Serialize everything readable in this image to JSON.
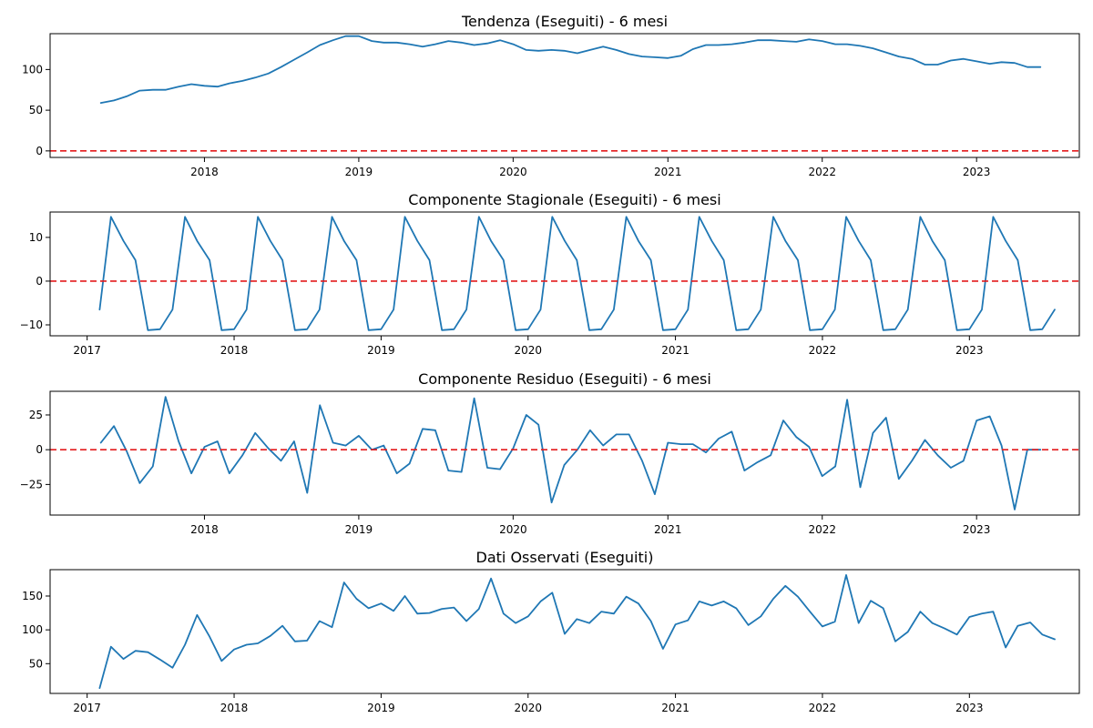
{
  "colors": {
    "series": "#1f77b4",
    "reference_line": "#e31a1c",
    "background": "#ffffff"
  },
  "chart_data": [
    {
      "type": "line",
      "title": "Tendenza (Eseguiti) - 6 mesi",
      "x_type": "date",
      "xlim": [
        "2017-01-01",
        "2023-09-01"
      ],
      "xticks": [
        "2018-01-01",
        "2019-01-01",
        "2020-01-01",
        "2021-01-01",
        "2022-01-01",
        "2023-01-01"
      ],
      "xtick_labels": [
        "2018",
        "2019",
        "2020",
        "2021",
        "2022",
        "2023"
      ],
      "ylim": [
        -8,
        144
      ],
      "yticks": [
        0,
        50,
        100
      ],
      "reference_line": 0,
      "grid": false,
      "x": [
        "2017-05-01",
        "2017-06-01",
        "2017-07-01",
        "2017-08-01",
        "2017-09-01",
        "2017-10-01",
        "2017-11-01",
        "2017-12-01",
        "2018-01-01",
        "2018-02-01",
        "2018-03-01",
        "2018-04-01",
        "2018-05-01",
        "2018-06-01",
        "2018-07-01",
        "2018-08-01",
        "2018-09-01",
        "2018-10-01",
        "2018-11-01",
        "2018-12-01",
        "2019-01-01",
        "2019-02-01",
        "2019-03-01",
        "2019-04-01",
        "2019-05-01",
        "2019-06-01",
        "2019-07-01",
        "2019-08-01",
        "2019-09-01",
        "2019-10-01",
        "2019-11-01",
        "2019-12-01",
        "2020-01-01",
        "2020-02-01",
        "2020-03-01",
        "2020-04-01",
        "2020-05-01",
        "2020-06-01",
        "2020-07-01",
        "2020-08-01",
        "2020-09-01",
        "2020-10-01",
        "2020-11-01",
        "2020-12-01",
        "2021-01-01",
        "2021-02-01",
        "2021-03-01",
        "2021-04-01",
        "2021-05-01",
        "2021-06-01",
        "2021-07-01",
        "2021-08-01",
        "2021-09-01",
        "2021-10-01",
        "2021-11-01",
        "2021-12-01",
        "2022-01-01",
        "2022-02-01",
        "2022-03-01",
        "2022-04-01",
        "2022-05-01",
        "2022-06-01",
        "2022-07-01",
        "2022-08-01",
        "2022-09-01",
        "2022-10-01",
        "2022-11-01",
        "2022-12-01",
        "2023-01-01",
        "2023-02-01",
        "2023-03-01",
        "2023-04-01",
        "2023-05-01",
        "2023-06-01"
      ],
      "series": [
        {
          "values": [
            59,
            62,
            67,
            74,
            75,
            75,
            79,
            82,
            80,
            79,
            83,
            86,
            90,
            95,
            103,
            112,
            121,
            130,
            136,
            141,
            141,
            135,
            133,
            133,
            131,
            128,
            131,
            135,
            133,
            130,
            132,
            136,
            131,
            124,
            123,
            124,
            123,
            120,
            124,
            128,
            124,
            119,
            116,
            115,
            114,
            117,
            125,
            130,
            130,
            131,
            133,
            136,
            136,
            135,
            134,
            137,
            135,
            131,
            131,
            129,
            126,
            121,
            116,
            113,
            106,
            106,
            111,
            113,
            110,
            107,
            109,
            108,
            103,
            103
          ]
        }
      ]
    },
    {
      "type": "line",
      "title": "Componente Stagionale (Eseguiti) - 6 mesi",
      "x_type": "date",
      "xlim": [
        "2016-10-01",
        "2023-10-01"
      ],
      "xticks": [
        "2017-01-01",
        "2018-01-01",
        "2019-01-01",
        "2020-01-01",
        "2021-01-01",
        "2022-01-01",
        "2023-01-01"
      ],
      "xtick_labels": [
        "2017",
        "2018",
        "2019",
        "2020",
        "2021",
        "2022",
        "2023"
      ],
      "ylim": [
        -12.5,
        15.8
      ],
      "yticks": [
        -10,
        0,
        10
      ],
      "reference_line": 0,
      "grid": false,
      "x": [
        "2017-02-01",
        "2017-03-01",
        "2017-04-01",
        "2017-05-01",
        "2017-06-01",
        "2017-07-01",
        "2017-08-01",
        "2017-09-01",
        "2017-10-01",
        "2017-11-01",
        "2017-12-01",
        "2018-01-01",
        "2018-02-01",
        "2018-03-01",
        "2018-04-01",
        "2018-05-01",
        "2018-06-01",
        "2018-07-01",
        "2018-08-01",
        "2018-09-01",
        "2018-10-01",
        "2018-11-01",
        "2018-12-01",
        "2019-01-01",
        "2019-02-01",
        "2019-03-01",
        "2019-04-01",
        "2019-05-01",
        "2019-06-01",
        "2019-07-01",
        "2019-08-01",
        "2019-09-01",
        "2019-10-01",
        "2019-11-01",
        "2019-12-01",
        "2020-01-01",
        "2020-02-01",
        "2020-03-01",
        "2020-04-01",
        "2020-05-01",
        "2020-06-01",
        "2020-07-01",
        "2020-08-01",
        "2020-09-01",
        "2020-10-01",
        "2020-11-01",
        "2020-12-01",
        "2021-01-01",
        "2021-02-01",
        "2021-03-01",
        "2021-04-01",
        "2021-05-01",
        "2021-06-01",
        "2021-07-01",
        "2021-08-01",
        "2021-09-01",
        "2021-10-01",
        "2021-11-01",
        "2021-12-01",
        "2022-01-01",
        "2022-02-01",
        "2022-03-01",
        "2022-04-01",
        "2022-05-01",
        "2022-06-01",
        "2022-07-01",
        "2022-08-01",
        "2022-09-01",
        "2022-10-01",
        "2022-11-01",
        "2022-12-01",
        "2023-01-01",
        "2023-02-01",
        "2023-03-01",
        "2023-04-01",
        "2023-05-01",
        "2023-06-01",
        "2023-07-01",
        "2023-08-01"
      ],
      "series": [
        {
          "values": [
            -6.5,
            14.7,
            9.2,
            4.8,
            -11.2,
            -11,
            -6.5,
            14.7,
            9.2,
            4.8,
            -11.2,
            -11,
            -6.5,
            14.7,
            9.2,
            4.8,
            -11.2,
            -11,
            -6.5,
            14.7,
            9.2,
            4.8,
            -11.2,
            -11,
            -6.5,
            14.7,
            9.2,
            4.8,
            -11.2,
            -11,
            -6.5,
            14.7,
            9.2,
            4.8,
            -11.2,
            -11,
            -6.5,
            14.7,
            9.2,
            4.8,
            -11.2,
            -11,
            -6.5,
            14.7,
            9.2,
            4.8,
            -11.2,
            -11,
            -6.5,
            14.7,
            9.2,
            4.8,
            -11.2,
            -11,
            -6.5,
            14.7,
            9.2,
            4.8,
            -11.2,
            -11,
            -6.5,
            14.7,
            9.2,
            4.8,
            -11.2,
            -11,
            -6.5,
            14.7,
            9.2,
            4.8,
            -11.2,
            -11,
            -6.5,
            14.7,
            9.2,
            4.8,
            -11.2,
            -11,
            -6.5
          ]
        }
      ]
    },
    {
      "type": "line",
      "title": "Componente Residuo (Eseguiti) - 6 mesi",
      "x_type": "date",
      "xlim": [
        "2017-01-01",
        "2023-09-01"
      ],
      "xticks": [
        "2018-01-01",
        "2019-01-01",
        "2020-01-01",
        "2021-01-01",
        "2022-01-01",
        "2023-01-01"
      ],
      "xtick_labels": [
        "2018",
        "2019",
        "2020",
        "2021",
        "2022",
        "2023"
      ],
      "ylim": [
        -47,
        42
      ],
      "yticks": [
        -25,
        0,
        25
      ],
      "reference_line": 0,
      "grid": false,
      "x": [
        "2017-05-01",
        "2017-06-01",
        "2017-07-01",
        "2017-08-01",
        "2017-09-01",
        "2017-10-01",
        "2017-11-01",
        "2017-12-01",
        "2018-01-01",
        "2018-02-01",
        "2018-03-01",
        "2018-04-01",
        "2018-05-01",
        "2018-06-01",
        "2018-07-01",
        "2018-08-01",
        "2018-09-01",
        "2018-10-01",
        "2018-11-01",
        "2018-12-01",
        "2019-01-01",
        "2019-02-01",
        "2019-03-01",
        "2019-04-01",
        "2019-05-01",
        "2019-06-01",
        "2019-07-01",
        "2019-08-01",
        "2019-09-01",
        "2019-10-01",
        "2019-11-01",
        "2019-12-01",
        "2020-01-01",
        "2020-02-01",
        "2020-03-01",
        "2020-04-01",
        "2020-05-01",
        "2020-06-01",
        "2020-07-01",
        "2020-08-01",
        "2020-09-01",
        "2020-10-01",
        "2020-11-01",
        "2020-12-01",
        "2021-01-01",
        "2021-02-01",
        "2021-03-01",
        "2021-04-01",
        "2021-05-01",
        "2021-06-01",
        "2021-07-01",
        "2021-08-01",
        "2021-09-01",
        "2021-10-01",
        "2021-11-01",
        "2021-12-01",
        "2022-01-01",
        "2022-02-01",
        "2022-03-01",
        "2022-04-01",
        "2022-05-01",
        "2022-06-01",
        "2022-07-01",
        "2022-08-01",
        "2022-09-01",
        "2022-10-01",
        "2022-11-01",
        "2022-12-01",
        "2023-01-01",
        "2023-02-01",
        "2023-03-01",
        "2023-04-01",
        "2023-05-01",
        "2023-06-01"
      ],
      "series": [
        {
          "values": [
            5,
            17,
            -1,
            -24,
            -12,
            38,
            6,
            -17,
            2,
            6,
            -17,
            -4,
            12,
            1,
            -8,
            6,
            -31,
            32,
            5,
            3,
            10,
            0,
            3,
            -17,
            -10,
            15,
            14,
            -15,
            -16,
            37,
            -13,
            -14,
            1,
            25,
            18,
            -38,
            -11,
            0,
            14,
            3,
            11,
            11,
            -8,
            -32,
            5,
            4,
            4,
            -2,
            8,
            13,
            -15,
            -9,
            -4,
            21,
            9,
            2,
            -19,
            -12,
            36,
            -27,
            12,
            23,
            -21,
            -8,
            7,
            -4,
            -13,
            -8,
            21,
            24,
            3,
            -43,
            0,
            0
          ]
        }
      ]
    },
    {
      "type": "line",
      "title": "Dati Osservati (Eseguiti)",
      "x_type": "date",
      "xlim": [
        "2016-10-01",
        "2023-10-01"
      ],
      "xticks": [
        "2017-01-01",
        "2018-01-01",
        "2019-01-01",
        "2020-01-01",
        "2021-01-01",
        "2022-01-01",
        "2023-01-01"
      ],
      "xtick_labels": [
        "2017",
        "2018",
        "2019",
        "2020",
        "2021",
        "2022",
        "2023"
      ],
      "ylim": [
        6,
        189
      ],
      "yticks": [
        50,
        100,
        150
      ],
      "grid": false,
      "x": [
        "2017-02-01",
        "2017-03-01",
        "2017-04-01",
        "2017-05-01",
        "2017-06-01",
        "2017-07-01",
        "2017-08-01",
        "2017-09-01",
        "2017-10-01",
        "2017-11-01",
        "2017-12-01",
        "2018-01-01",
        "2018-02-01",
        "2018-03-01",
        "2018-04-01",
        "2018-05-01",
        "2018-06-01",
        "2018-07-01",
        "2018-08-01",
        "2018-09-01",
        "2018-10-01",
        "2018-11-01",
        "2018-12-01",
        "2019-01-01",
        "2019-02-01",
        "2019-03-01",
        "2019-04-01",
        "2019-05-01",
        "2019-06-01",
        "2019-07-01",
        "2019-08-01",
        "2019-09-01",
        "2019-10-01",
        "2019-11-01",
        "2019-12-01",
        "2020-01-01",
        "2020-02-01",
        "2020-03-01",
        "2020-04-01",
        "2020-05-01",
        "2020-06-01",
        "2020-07-01",
        "2020-08-01",
        "2020-09-01",
        "2020-10-01",
        "2020-11-01",
        "2020-12-01",
        "2021-01-01",
        "2021-02-01",
        "2021-03-01",
        "2021-04-01",
        "2021-05-01",
        "2021-06-01",
        "2021-07-01",
        "2021-08-01",
        "2021-09-01",
        "2021-10-01",
        "2021-11-01",
        "2021-12-01",
        "2022-01-01",
        "2022-02-01",
        "2022-03-01",
        "2022-04-01",
        "2022-05-01",
        "2022-06-01",
        "2022-07-01",
        "2022-08-01",
        "2022-09-01",
        "2022-10-01",
        "2022-11-01",
        "2022-12-01",
        "2023-01-01",
        "2023-02-01",
        "2023-03-01",
        "2023-04-01",
        "2023-05-01",
        "2023-06-01",
        "2023-07-01",
        "2023-08-01"
      ],
      "series": [
        {
          "values": [
            14,
            75,
            57,
            69,
            67,
            56,
            44,
            78,
            122,
            90,
            54,
            71,
            78,
            80,
            91,
            106,
            83,
            84,
            113,
            104,
            170,
            146,
            132,
            139,
            128,
            150,
            124,
            125,
            131,
            133,
            113,
            131,
            176,
            124,
            110,
            120,
            142,
            155,
            94,
            116,
            110,
            127,
            124,
            149,
            139,
            113,
            72,
            108,
            114,
            142,
            136,
            142,
            132,
            107,
            120,
            146,
            165,
            149,
            127,
            105,
            112,
            181,
            110,
            143,
            132,
            83,
            97,
            127,
            110,
            102,
            93,
            119,
            124,
            127,
            74,
            106,
            111,
            93,
            86
          ]
        }
      ]
    }
  ]
}
